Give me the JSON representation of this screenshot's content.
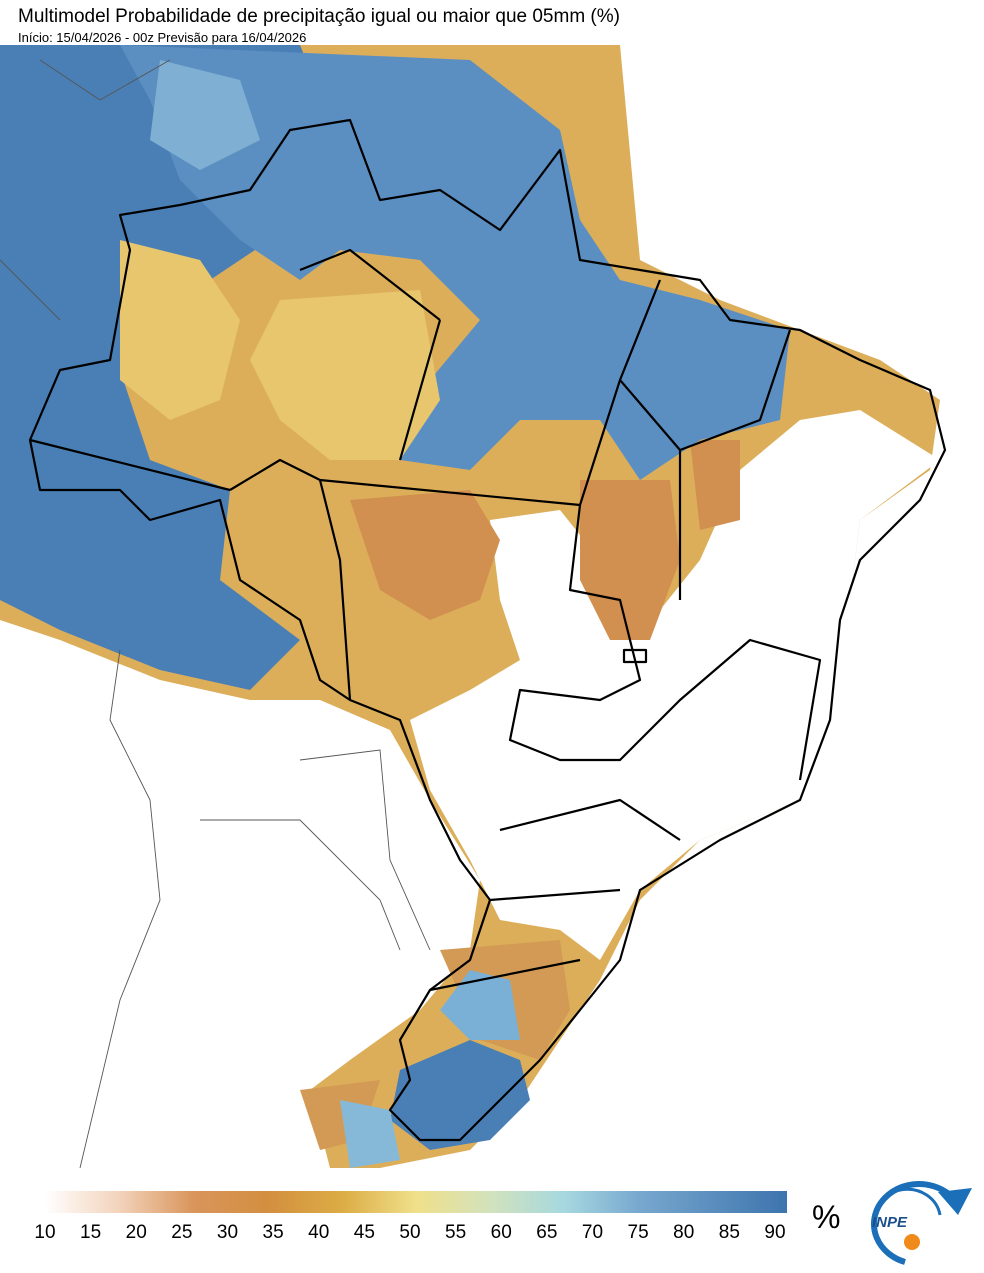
{
  "header": {
    "title": "Multimodel Probabilidade de precipitação igual ou maior que 05mm (%)",
    "subtitle": "Início: 15/04/2026 - 00z  Previsão para 16/04/2026"
  },
  "colorbar": {
    "ticks": [
      10,
      15,
      20,
      25,
      30,
      35,
      40,
      45,
      50,
      55,
      60,
      65,
      70,
      75,
      80,
      85,
      90
    ],
    "unit": "%"
  },
  "logo": {
    "text": "INPE"
  }
}
